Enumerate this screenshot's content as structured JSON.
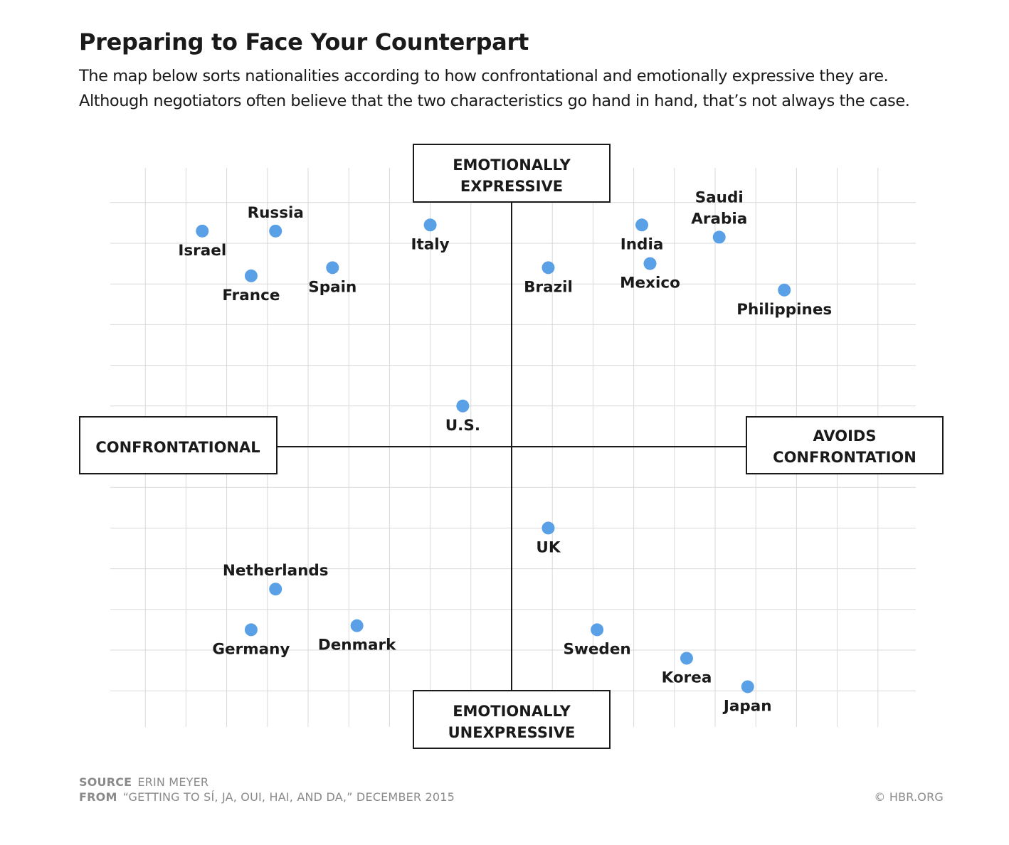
{
  "header": {
    "title": "Preparing to Face Your Counterpart",
    "subtitle_line1": "The map below sorts nationalities according to how confrontational and emotionally expressive they are.",
    "subtitle_line2": "Although negotiators often believe that the two characteristics go hand in hand, that’s not always the case."
  },
  "chart_data": {
    "type": "scatter",
    "title": "Preparing to Face Your Counterpart",
    "xlabel_negative": "CONFRONTATIONAL",
    "xlabel_positive": "AVOIDS CONFRONTATION",
    "ylabel_positive": "EMOTIONALLY EXPRESSIVE",
    "ylabel_negative": "EMOTIONALLY UNEXPRESSIVE",
    "xlim": [
      -10.6,
      10.0
    ],
    "ylim": [
      -6.3,
      6.3
    ],
    "grid": true,
    "point_color": "#5aa0e6",
    "points": [
      {
        "name": "Israel",
        "x": -7.6,
        "y": 5.3,
        "label_pos": "below"
      },
      {
        "name": "Russia",
        "x": -5.8,
        "y": 5.3,
        "label_pos": "above"
      },
      {
        "name": "France",
        "x": -6.4,
        "y": 4.2,
        "label_pos": "below"
      },
      {
        "name": "Spain",
        "x": -4.4,
        "y": 4.4,
        "label_pos": "below"
      },
      {
        "name": "Italy",
        "x": -2.0,
        "y": 5.45,
        "label_pos": "below"
      },
      {
        "name": "Brazil",
        "x": 0.9,
        "y": 4.4,
        "label_pos": "below"
      },
      {
        "name": "India",
        "x": 3.2,
        "y": 5.45,
        "label_pos": "below"
      },
      {
        "name": "Mexico",
        "x": 3.4,
        "y": 4.5,
        "label_pos": "below"
      },
      {
        "name": "Saudi Arabia",
        "x": 5.1,
        "y": 5.15,
        "label_pos": "above"
      },
      {
        "name": "Philippines",
        "x": 6.7,
        "y": 3.85,
        "label_pos": "below"
      },
      {
        "name": "U.S.",
        "x": -1.2,
        "y": 1.0,
        "label_pos": "below"
      },
      {
        "name": "UK",
        "x": 0.9,
        "y": -2.0,
        "label_pos": "below"
      },
      {
        "name": "Netherlands",
        "x": -5.8,
        "y": -3.5,
        "label_pos": "above"
      },
      {
        "name": "Germany",
        "x": -6.4,
        "y": -4.5,
        "label_pos": "below"
      },
      {
        "name": "Denmark",
        "x": -3.8,
        "y": -4.4,
        "label_pos": "below"
      },
      {
        "name": "Sweden",
        "x": 2.1,
        "y": -4.5,
        "label_pos": "below"
      },
      {
        "name": "Korea",
        "x": 4.3,
        "y": -5.2,
        "label_pos": "below"
      },
      {
        "name": "Japan",
        "x": 5.8,
        "y": -5.9,
        "label_pos": "below"
      }
    ]
  },
  "axis_boxes": {
    "top_line1": "EMOTIONALLY",
    "top_line2": "EXPRESSIVE",
    "bottom_line1": "EMOTIONALLY",
    "bottom_line2": "UNEXPRESSIVE",
    "left": "CONFRONTATIONAL",
    "right_line1": "AVOIDS",
    "right_line2": "CONFRONTATION"
  },
  "footer": {
    "source_label": "SOURCE",
    "source_value": "ERIN MEYER",
    "from_label": "FROM",
    "from_value": "“GETTING TO SÍ, JA, OUI, HAI, AND DA,” DECEMBER 2015",
    "copyright": "© HBR.ORG"
  },
  "colors": {
    "point": "#5aa0e6",
    "grid": "#d9d9d9",
    "axis": "#1a1a1a",
    "footer": "#8a8a8a"
  }
}
